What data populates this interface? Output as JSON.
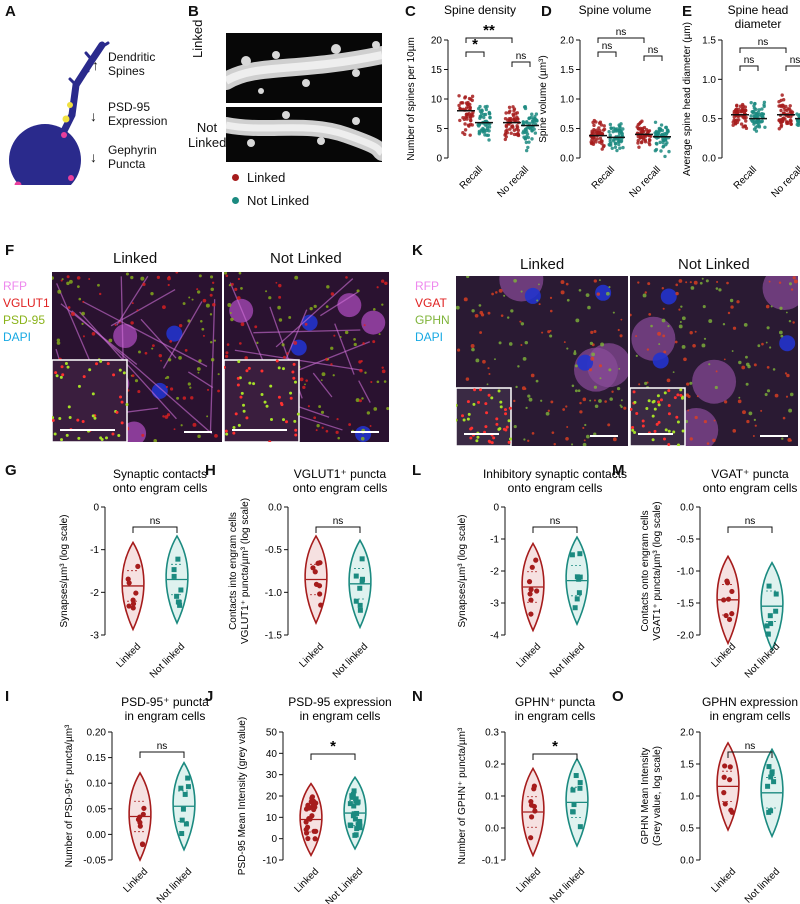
{
  "colors": {
    "linked": "#a61c1c",
    "not_linked": "#1b8a80",
    "rfp": "#ee88ee",
    "vglut": "#e02020",
    "psd": "#8ab31a",
    "dapi": "#17a9e3",
    "gphn": "#7fb43a",
    "neuron": "#2a2a8c",
    "psd_dot": "#f0e040",
    "geph_dot": "#e83e9c"
  },
  "panel_letters": {
    "a": "A",
    "b": "B",
    "c": "C",
    "d": "D",
    "e": "E",
    "f": "F",
    "k": "K",
    "g": "G",
    "h": "H",
    "l": "L",
    "m": "M",
    "i": "I",
    "j": "J",
    "n": "N",
    "o": "O"
  },
  "panel_a": {
    "dendritic_spines": "Dendritic\nSpines",
    "psd95_expression": "PSD-95\nExpression",
    "gephyrin_puncta": "Gephyrin\nPuncta",
    "arrow_up": "↑",
    "arrow_down1": "↓",
    "arrow_down2": "↓"
  },
  "panel_b": {
    "linked": "Linked",
    "not_linked": "Not\nLinked"
  },
  "legend": {
    "linked": "Linked",
    "not_linked": "Not Linked"
  },
  "panel_f": {
    "col1": "Linked",
    "col2": "Not Linked",
    "channels": [
      "RFP",
      "VGLUT1",
      "PSD-95",
      "DAPI"
    ]
  },
  "panel_k": {
    "col1": "Linked",
    "col2": "Not Linked",
    "channels": [
      "RFP",
      "VGAT",
      "GPHN",
      "DAPI"
    ]
  },
  "chart_data": [
    {
      "id": "C",
      "type": "scatter",
      "title": "Spine density",
      "ylabel": "Number of spines per 10µm",
      "ylim": [
        0,
        20
      ],
      "yticks": [
        "0",
        "5",
        "10",
        "15",
        "20"
      ],
      "categories": [
        "Recall",
        "No recall"
      ],
      "series": [
        {
          "name": "Linked",
          "values": [
            8.0,
            6.0
          ]
        },
        {
          "name": "Not Linked",
          "values": [
            6.0,
            5.5
          ]
        }
      ],
      "annotations": [
        "*",
        "**",
        "ns"
      ]
    },
    {
      "id": "D",
      "type": "scatter",
      "title": "Spine volume",
      "ylabel": "Spine volume (µm³)",
      "ylim": [
        0,
        2.0
      ],
      "yticks": [
        "0.0",
        "0.5",
        "1.0",
        "1.5",
        "2.0"
      ],
      "categories": [
        "Recall",
        "No recall"
      ],
      "series": [
        {
          "name": "Linked",
          "values": [
            0.38,
            0.4
          ]
        },
        {
          "name": "Not Linked",
          "values": [
            0.35,
            0.36
          ]
        }
      ],
      "annotations": [
        "ns",
        "ns",
        "ns"
      ]
    },
    {
      "id": "E",
      "type": "scatter",
      "title": "Spine head\ndiameter",
      "ylabel": "Average spine head diameter (µm)",
      "ylim": [
        0,
        1.5
      ],
      "yticks": [
        "0.0",
        "0.5",
        "1.0",
        "1.5"
      ],
      "categories": [
        "Recall",
        "No recall"
      ],
      "series": [
        {
          "name": "Linked",
          "values": [
            0.55,
            0.55
          ]
        },
        {
          "name": "Not Linked",
          "values": [
            0.5,
            0.5
          ]
        }
      ],
      "annotations": [
        "ns",
        "ns",
        "ns"
      ]
    },
    {
      "id": "G",
      "type": "violin",
      "title": "Synaptic contacts\nonto engram cells",
      "ylabel": "Synapses/µm³ (log scale)",
      "ylim": [
        -3,
        0
      ],
      "yticks": [
        "-3",
        "-2",
        "-1",
        "0"
      ],
      "categories": [
        "Linked",
        "Not linked"
      ],
      "series": [
        {
          "name": "median",
          "values": [
            -1.85,
            -1.7
          ]
        }
      ],
      "annotations": [
        "ns"
      ]
    },
    {
      "id": "H",
      "type": "violin",
      "title": "VGLUT1⁺ puncta\nonto engram cells",
      "ylabel": "Contacts into engram cells\nVGLUT1⁺ puncta/µm³ (log scale)",
      "ylim": [
        -1.5,
        0
      ],
      "yticks": [
        "-1.5",
        "-1.0",
        "-0.5",
        "0.0"
      ],
      "categories": [
        "Linked",
        "Not linked"
      ],
      "series": [
        {
          "name": "median",
          "values": [
            -0.85,
            -0.9
          ]
        }
      ],
      "annotations": [
        "ns"
      ]
    },
    {
      "id": "L",
      "type": "violin",
      "title": "Inhibitory synaptic contacts\nonto engram cells",
      "ylabel": "Synapses/µm³ (log scale)",
      "ylim": [
        -4,
        0
      ],
      "yticks": [
        "-4",
        "-3",
        "-2",
        "-1",
        "0"
      ],
      "categories": [
        "Linked",
        "Not linked"
      ],
      "series": [
        {
          "name": "median",
          "values": [
            -2.5,
            -2.3
          ]
        }
      ],
      "annotations": [
        "ns"
      ]
    },
    {
      "id": "M",
      "type": "violin",
      "title": "VGAT⁺ puncta\nonto engram cells",
      "ylabel": "Contacts onto engram cells\nVGAT1⁺ puncta/µm³ (log scale)",
      "ylim": [
        -2,
        0
      ],
      "yticks": [
        "-2.0",
        "-1.5",
        "-1.0",
        "-0.5",
        "0.0"
      ],
      "categories": [
        "Linked",
        "Not linked"
      ],
      "series": [
        {
          "name": "median",
          "values": [
            -1.45,
            -1.55
          ]
        }
      ],
      "annotations": [
        "ns"
      ]
    },
    {
      "id": "I",
      "type": "violin",
      "title": "PSD-95⁺ puncta\nin engram cells",
      "ylabel": "Number of PSD-95⁺ puncta/µm³",
      "ylim": [
        -0.05,
        0.2
      ],
      "yticks": [
        "-0.05",
        "0.00",
        "0.05",
        "0.10",
        "0.15",
        "0.20"
      ],
      "categories": [
        "Linked",
        "Not linked"
      ],
      "series": [
        {
          "name": "median",
          "values": [
            0.035,
            0.055
          ]
        }
      ],
      "annotations": [
        "ns"
      ]
    },
    {
      "id": "J",
      "type": "violin",
      "title": "PSD-95 expression\nin engram cells",
      "ylabel": "PSD-95 Mean Intensity (grey value)",
      "ylim": [
        -10,
        50
      ],
      "yticks": [
        "-10",
        "0",
        "10",
        "20",
        "30",
        "40",
        "50"
      ],
      "categories": [
        "Linked",
        "Not Linked"
      ],
      "series": [
        {
          "name": "median",
          "values": [
            9,
            12
          ]
        }
      ],
      "annotations": [
        "*"
      ]
    },
    {
      "id": "N",
      "type": "violin",
      "title": "GPHN⁺ puncta\nin engram cells",
      "ylabel": "Number of GPHN⁺ puncta/µm³",
      "ylim": [
        -0.1,
        0.3
      ],
      "yticks": [
        "-0.1",
        "0.0",
        "0.1",
        "0.2",
        "0.3"
      ],
      "categories": [
        "Linked",
        "Not linked"
      ],
      "series": [
        {
          "name": "median",
          "values": [
            0.05,
            0.08
          ]
        }
      ],
      "annotations": [
        "*"
      ]
    },
    {
      "id": "O",
      "type": "violin",
      "title": "GPHN expression\nin engram cells",
      "ylabel": "GPHN Mean Intensity\n(Grey value, log scale)",
      "ylim": [
        0,
        2.0
      ],
      "yticks": [
        "0.0",
        "0.5",
        "1.0",
        "1.5",
        "2.0"
      ],
      "categories": [
        "Linked",
        "Not linked"
      ],
      "series": [
        {
          "name": "median",
          "values": [
            1.15,
            1.05
          ]
        }
      ],
      "annotations": [
        "ns"
      ]
    }
  ]
}
